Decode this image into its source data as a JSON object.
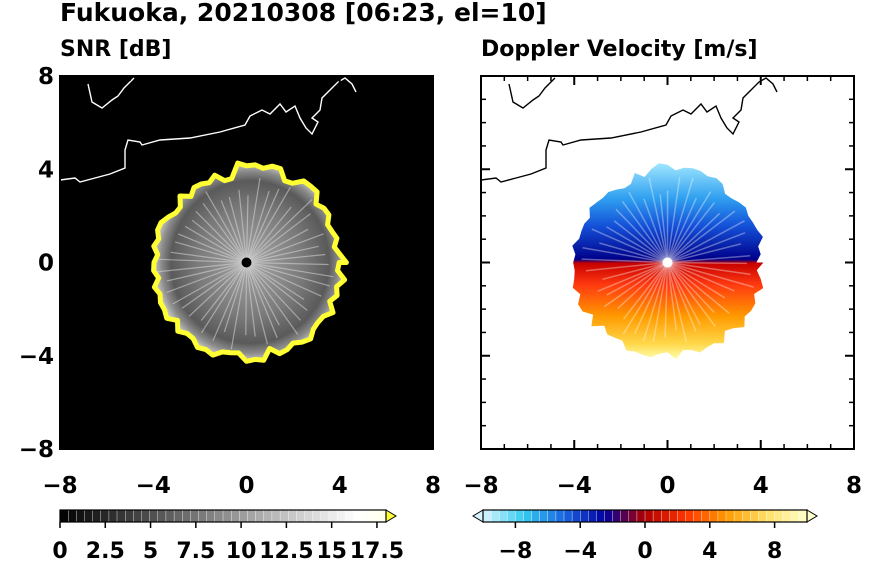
{
  "figure": {
    "title": "Fukuoka, 20210308 [06:23, el=10]"
  },
  "chart_data": [
    {
      "type": "heatmap",
      "title": "SNR [dB]",
      "xlim": [
        -8,
        8
      ],
      "ylim": [
        -8,
        8
      ],
      "xticks": [
        "−8",
        "−4",
        "0",
        "4",
        "8"
      ],
      "yticks": [
        "8",
        "4",
        "0",
        "−4",
        "−8"
      ],
      "tick_values": [
        -8,
        -4,
        0,
        4,
        8
      ],
      "background": "#000000",
      "echo_radius_km": 4.1,
      "colorbar": {
        "range": [
          0,
          18
        ],
        "labels": [
          "0",
          "2.5",
          "5",
          "7.5",
          "10",
          "12.5",
          "15",
          "17.5"
        ],
        "label_values": [
          0,
          2.5,
          5,
          7.5,
          10,
          12.5,
          15,
          17.5
        ],
        "colors": [
          "#000000",
          "#ffffff",
          "#ffff33"
        ],
        "extend": "max"
      }
    },
    {
      "type": "heatmap",
      "title": "Doppler Velocity [m/s]",
      "xlim": [
        -8,
        8
      ],
      "ylim": [
        -8,
        8
      ],
      "xticks": [
        "−8",
        "−4",
        "0",
        "4",
        "8"
      ],
      "tick_values": [
        -8,
        -4,
        0,
        4,
        8
      ],
      "background": "#ffffff",
      "echo_radius_km": 4.1,
      "colorbar": {
        "range": [
          -10,
          10
        ],
        "labels": [
          "−8",
          "−4",
          "0",
          "4",
          "8"
        ],
        "label_values": [
          -8,
          -4,
          0,
          4,
          8
        ],
        "colors": [
          "#d8f5ff",
          "#33ccf0",
          "#1a66e0",
          "#0000a0",
          "#b00000",
          "#ff3300",
          "#ff9900",
          "#ffe066",
          "#ffffcc"
        ],
        "extend": "both"
      }
    }
  ]
}
